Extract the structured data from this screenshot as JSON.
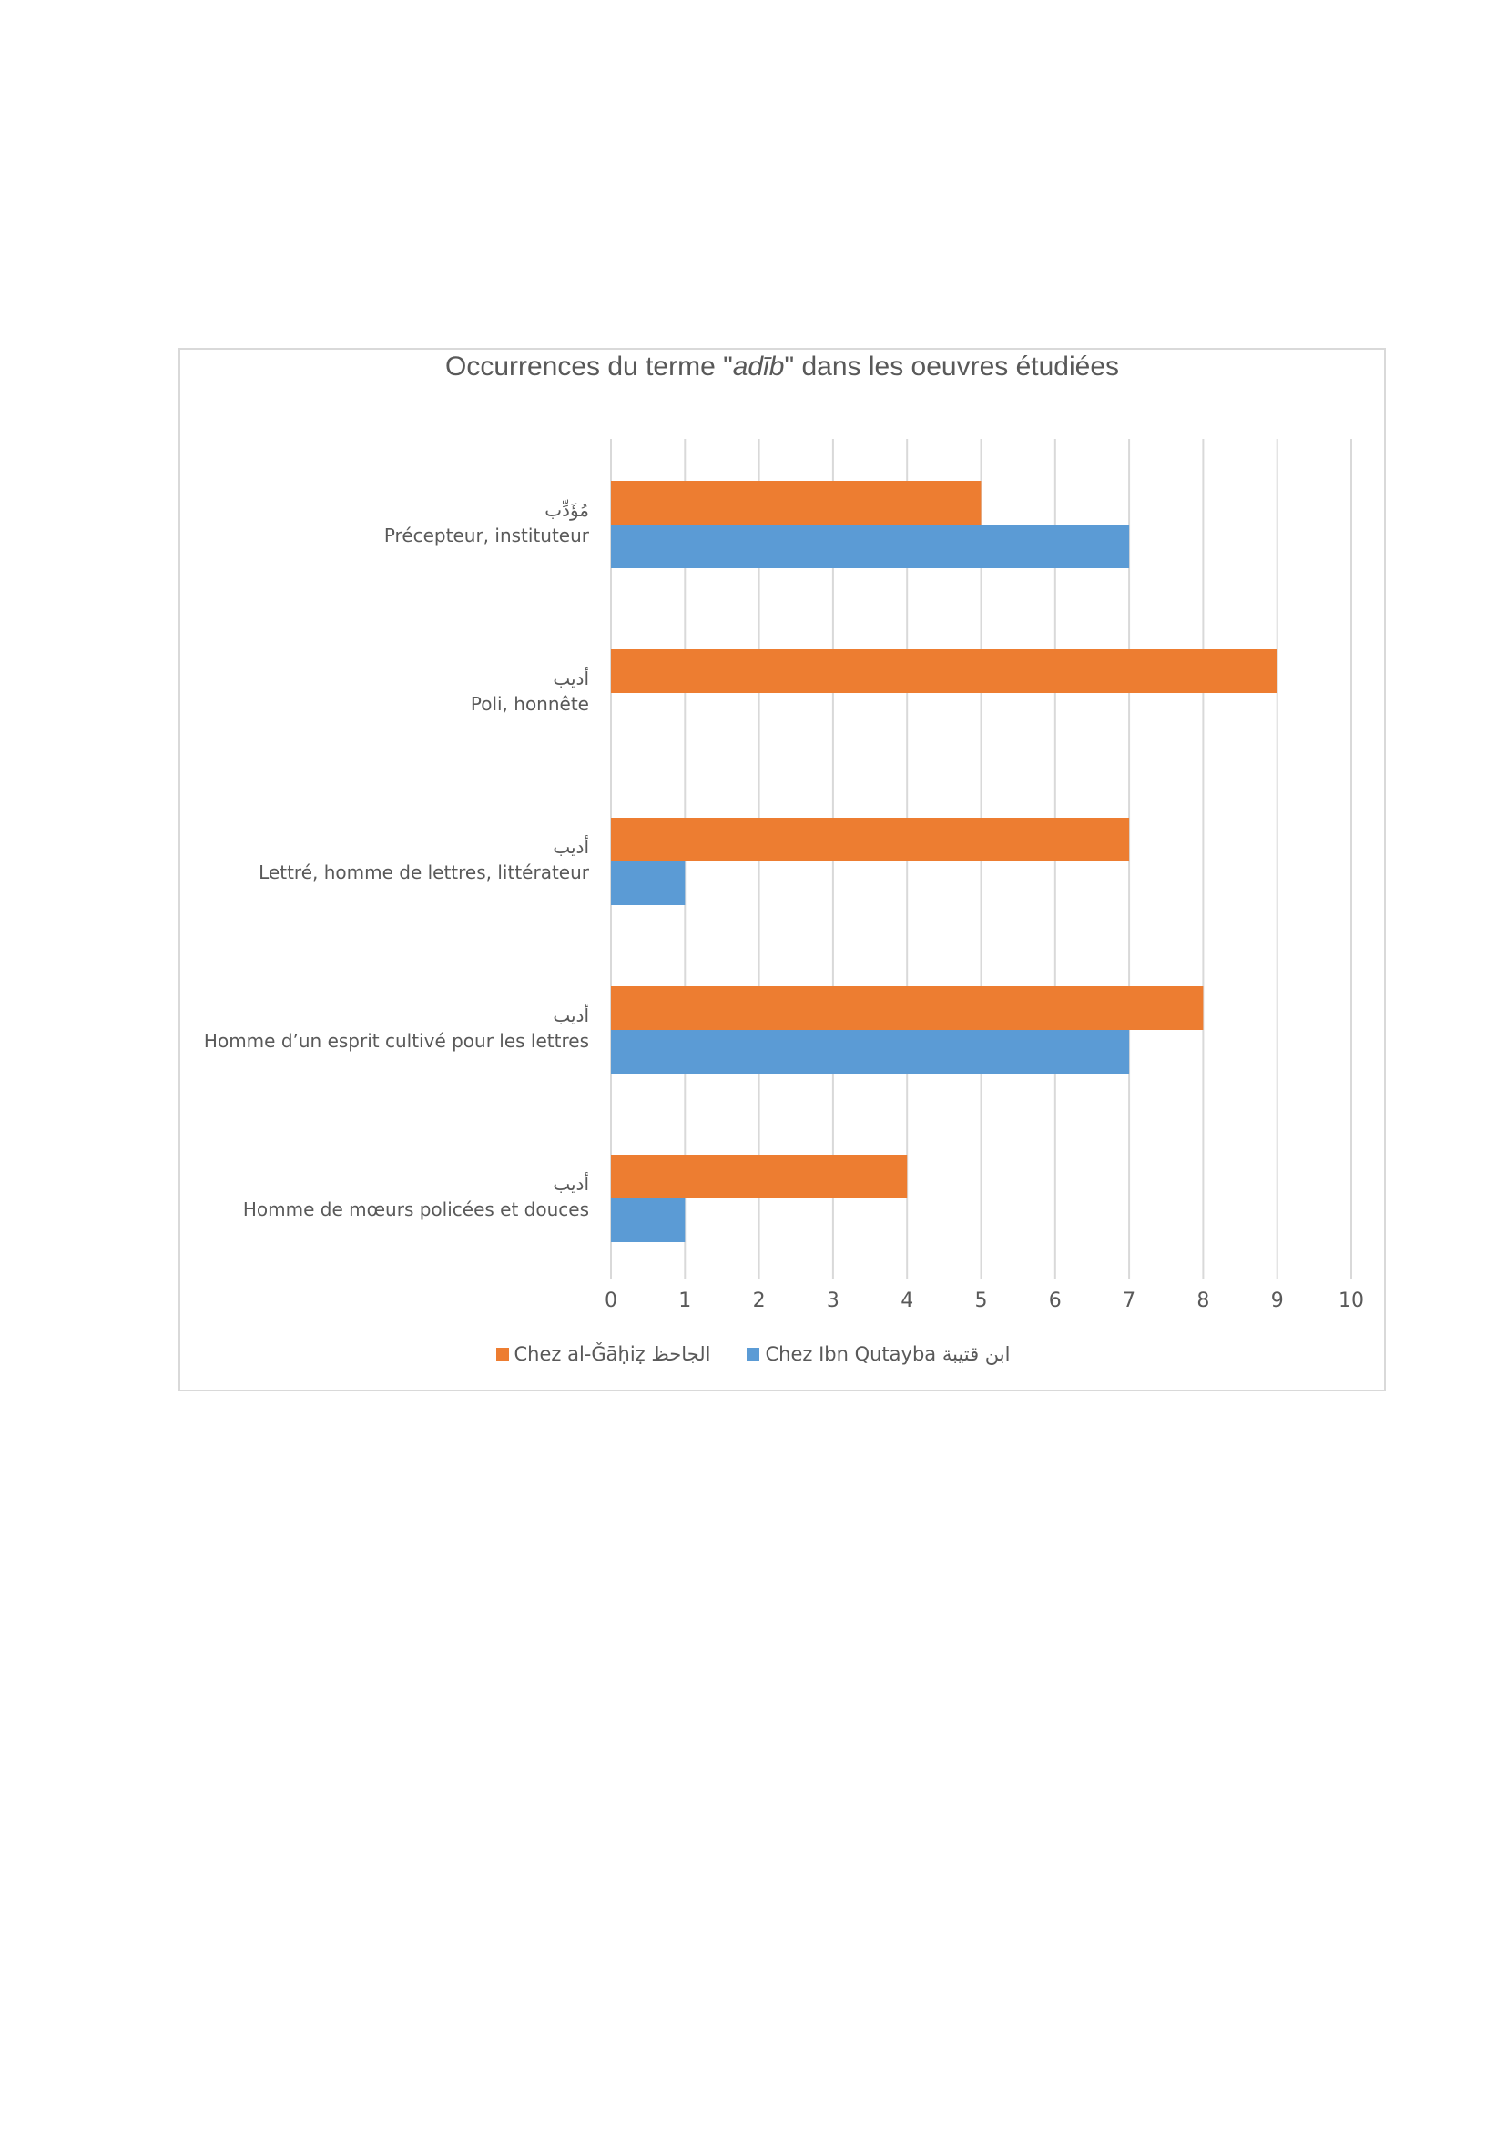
{
  "chart_data": {
    "type": "bar",
    "orientation": "horizontal",
    "title": {
      "prefix": "Occurrences du terme \"",
      "emphasis": "adīb",
      "suffix": "\" dans les oeuvres étudiées"
    },
    "categories": [
      {
        "arabic": "مُؤَدِّب",
        "label": "Précepteur, instituteur"
      },
      {
        "arabic": "أديب",
        "label": "Poli, honnête"
      },
      {
        "arabic": "أديب",
        "label": "Lettré, homme de lettres, littérateur"
      },
      {
        "arabic": "أديب",
        "label": "Homme d’un esprit cultivé pour les lettres"
      },
      {
        "arabic": "أديب",
        "label": "Homme de mœurs policées et douces"
      }
    ],
    "series": [
      {
        "name": "Chez al-Ǧāḥiẓ الجاحظ",
        "color": "#ed7d31",
        "values": [
          5,
          9,
          7,
          8,
          4
        ]
      },
      {
        "name": "Chez Ibn Qutayba ابن قتيبة",
        "color": "#5b9bd5",
        "values": [
          7,
          0,
          1,
          7,
          1
        ]
      }
    ],
    "xlim": [
      0,
      10
    ],
    "ticks": [
      "0",
      "1",
      "2",
      "3",
      "4",
      "5",
      "6",
      "7",
      "8",
      "9",
      "10"
    ],
    "grid": true,
    "legend_position": "bottom"
  }
}
